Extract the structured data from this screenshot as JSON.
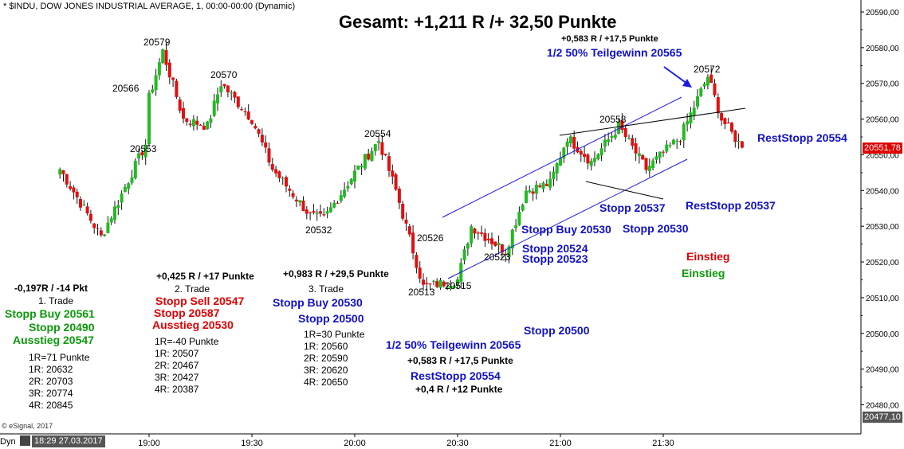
{
  "title": "Gesamt: +1,211 R /+ 32,50 Punkte",
  "source_label": "* $INDU, DOW JONES INDUSTRIAL AVERAGE, 1, 00:00-00:00 (Dynamic)",
  "copyright": "© eSignal, 2017",
  "footer": {
    "mode": "Dyn",
    "timestamp": "18:29 27.03.2017"
  },
  "colors": {
    "up": "#22bb22",
    "down": "#e01010",
    "channel": "#1a1ae6",
    "trend": "#000000",
    "blue_text": "#1010c8",
    "red_text": "#e00000",
    "green_text": "#0a9a0a"
  },
  "chart_data": {
    "type": "candlestick",
    "title": "Gesamt: +1,211 R /+ 32,50 Punkte",
    "y_axis": {
      "min": 20477.1,
      "max": 20590,
      "ticks": [
        20480,
        20490,
        20500,
        20510,
        20520,
        20530,
        20540,
        20550,
        20560,
        20570,
        20580,
        20590
      ],
      "labels": [
        "20480,00",
        "20490,00",
        "20500,00",
        "20510,00",
        "20520,00",
        "20530,00",
        "20540,00",
        "20550,00",
        "20560,00",
        "20570,00",
        "20580,00",
        "20590,00"
      ],
      "position": "right"
    },
    "x_axis": {
      "labels": [
        "19:00",
        "19:30",
        "20:00",
        "20:30",
        "21:00",
        "21:30"
      ]
    },
    "last_price": "20551,78",
    "low_marker": "20477,10",
    "key_points": [
      {
        "time": "18:34",
        "price": 20546
      },
      {
        "time": "18:46",
        "price": 20527
      },
      {
        "time": "18:59",
        "price": 20553
      },
      {
        "time": "19:00",
        "price": 20566
      },
      {
        "time": "19:04",
        "price": 20579
      },
      {
        "time": "19:10",
        "price": 20560
      },
      {
        "time": "19:17",
        "price": 20558
      },
      {
        "time": "19:21",
        "price": 20570
      },
      {
        "time": "19:30",
        "price": 20560
      },
      {
        "time": "19:36",
        "price": 20546
      },
      {
        "time": "19:47",
        "price": 20533
      },
      {
        "time": "19:51",
        "price": 20532
      },
      {
        "time": "20:00",
        "price": 20545
      },
      {
        "time": "20:07",
        "price": 20554
      },
      {
        "time": "20:12",
        "price": 20540
      },
      {
        "time": "20:20",
        "price": 20513
      },
      {
        "time": "20:30",
        "price": 20515
      },
      {
        "time": "20:34",
        "price": 20530
      },
      {
        "time": "20:44",
        "price": 20523
      },
      {
        "time": "20:50",
        "price": 20540
      },
      {
        "time": "20:57",
        "price": 20542
      },
      {
        "time": "21:02",
        "price": 20555
      },
      {
        "time": "21:09",
        "price": 20548
      },
      {
        "time": "21:17",
        "price": 20558
      },
      {
        "time": "21:25",
        "price": 20546
      },
      {
        "time": "21:35",
        "price": 20555
      },
      {
        "time": "21:43",
        "price": 20572
      },
      {
        "time": "21:47",
        "price": 20560
      },
      {
        "time": "21:53",
        "price": 20552
      }
    ],
    "price_labels": [
      "20579",
      "20566",
      "20570",
      "20553",
      "20554",
      "20532",
      "20526",
      "20523",
      "20513",
      "20515",
      "20558",
      "20572"
    ],
    "annotations": [
      "+0,583 R / +17,5 Punkte",
      "1/2 50% Teilgewinn 20565",
      "RestStopp 20554",
      "Stopp 20537",
      "RestStopp 20537",
      "Stopp Buy 20530",
      "Stopp 20530",
      "Stopp 20524",
      "Stopp 20523",
      "Einstieg",
      "Einstieg"
    ]
  },
  "trades": {
    "t1": {
      "result": "-0,197R / -14 Pkt",
      "name": "1. Trade",
      "entry": "Stopp Buy 20561",
      "stop": "Stopp 20490",
      "exit": "Ausstieg 20547",
      "r": "1R=71 Punkte",
      "targets": [
        "1R: 20632",
        "2R: 20703",
        "3R: 20774",
        "4R: 20845"
      ]
    },
    "t2": {
      "result": "+0,425 R / +17 Punkte",
      "name": "2. Trade",
      "entry": "Stopp Sell 20547",
      "stop": "Stopp 20587",
      "exit": "Ausstieg 20530",
      "r": "1R=-40 Punkte",
      "targets": [
        "1R: 20507",
        "2R: 20467",
        "3R: 20427",
        "4R: 20387"
      ]
    },
    "t3": {
      "result": "+0,983 R / +29,5 Punkte",
      "name": "3. Trade",
      "entry": "Stopp Buy 20530",
      "stop": "Stopp 20500",
      "r": "1R=30 Punkte",
      "targets": [
        "1R: 20560",
        "2R: 20590",
        "3R: 20620",
        "4R: 20650"
      ]
    },
    "t4": {
      "stop": "Stopp 20500",
      "partial": "1/2 50% Teilgewinn 20565",
      "partial_result": "+0,583 R / +17,5 Punkte",
      "rest_stop": "RestStopp 20554",
      "rest_result": "+0,4 R / +12 Punkte"
    }
  }
}
